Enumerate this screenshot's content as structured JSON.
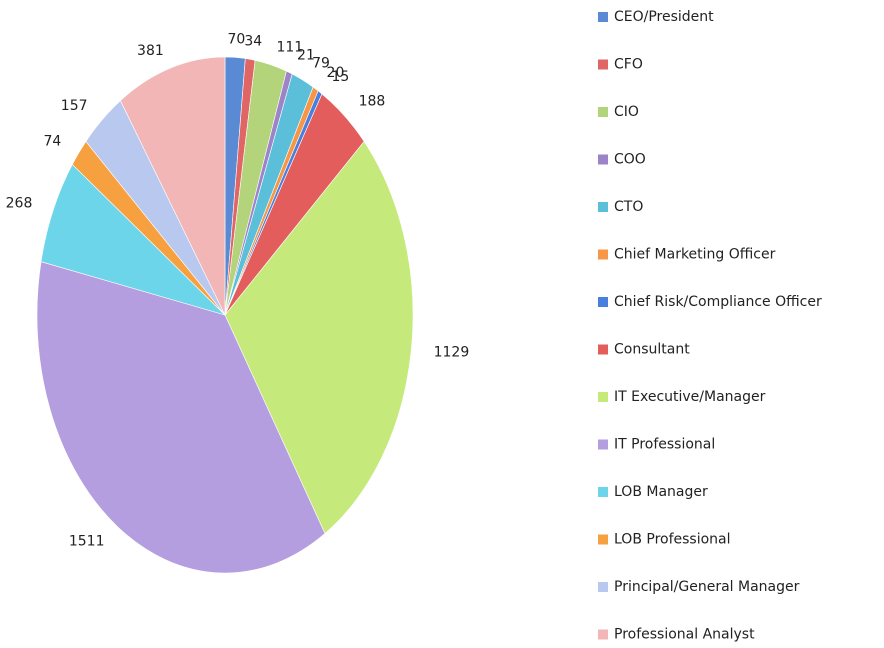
{
  "chart_data": {
    "type": "pie",
    "categories": [
      "CEO/President",
      "CFO",
      "CIO",
      "COO",
      "CTO",
      "Chief Marketing Officer",
      "Chief Risk/Compliance Officer",
      "Consultant",
      "IT Executive/Manager",
      "IT Professional",
      "LOB Manager",
      "LOB Professional",
      "Principal/General Manager",
      "Professional Analyst"
    ],
    "values": [
      70,
      34,
      111,
      21,
      79,
      20,
      15,
      188,
      1129,
      1511,
      268,
      74,
      157,
      381
    ],
    "colors": [
      "#5a8ad4",
      "#e06666",
      "#b3d47a",
      "#9c84c8",
      "#5bbfd9",
      "#f79646",
      "#4a80dd",
      "#e35d5d",
      "#c6e97c",
      "#b49ee0",
      "#6dd5ea",
      "#f7a040",
      "#b8c8ef",
      "#f2b6b6"
    ],
    "legend": "right"
  }
}
